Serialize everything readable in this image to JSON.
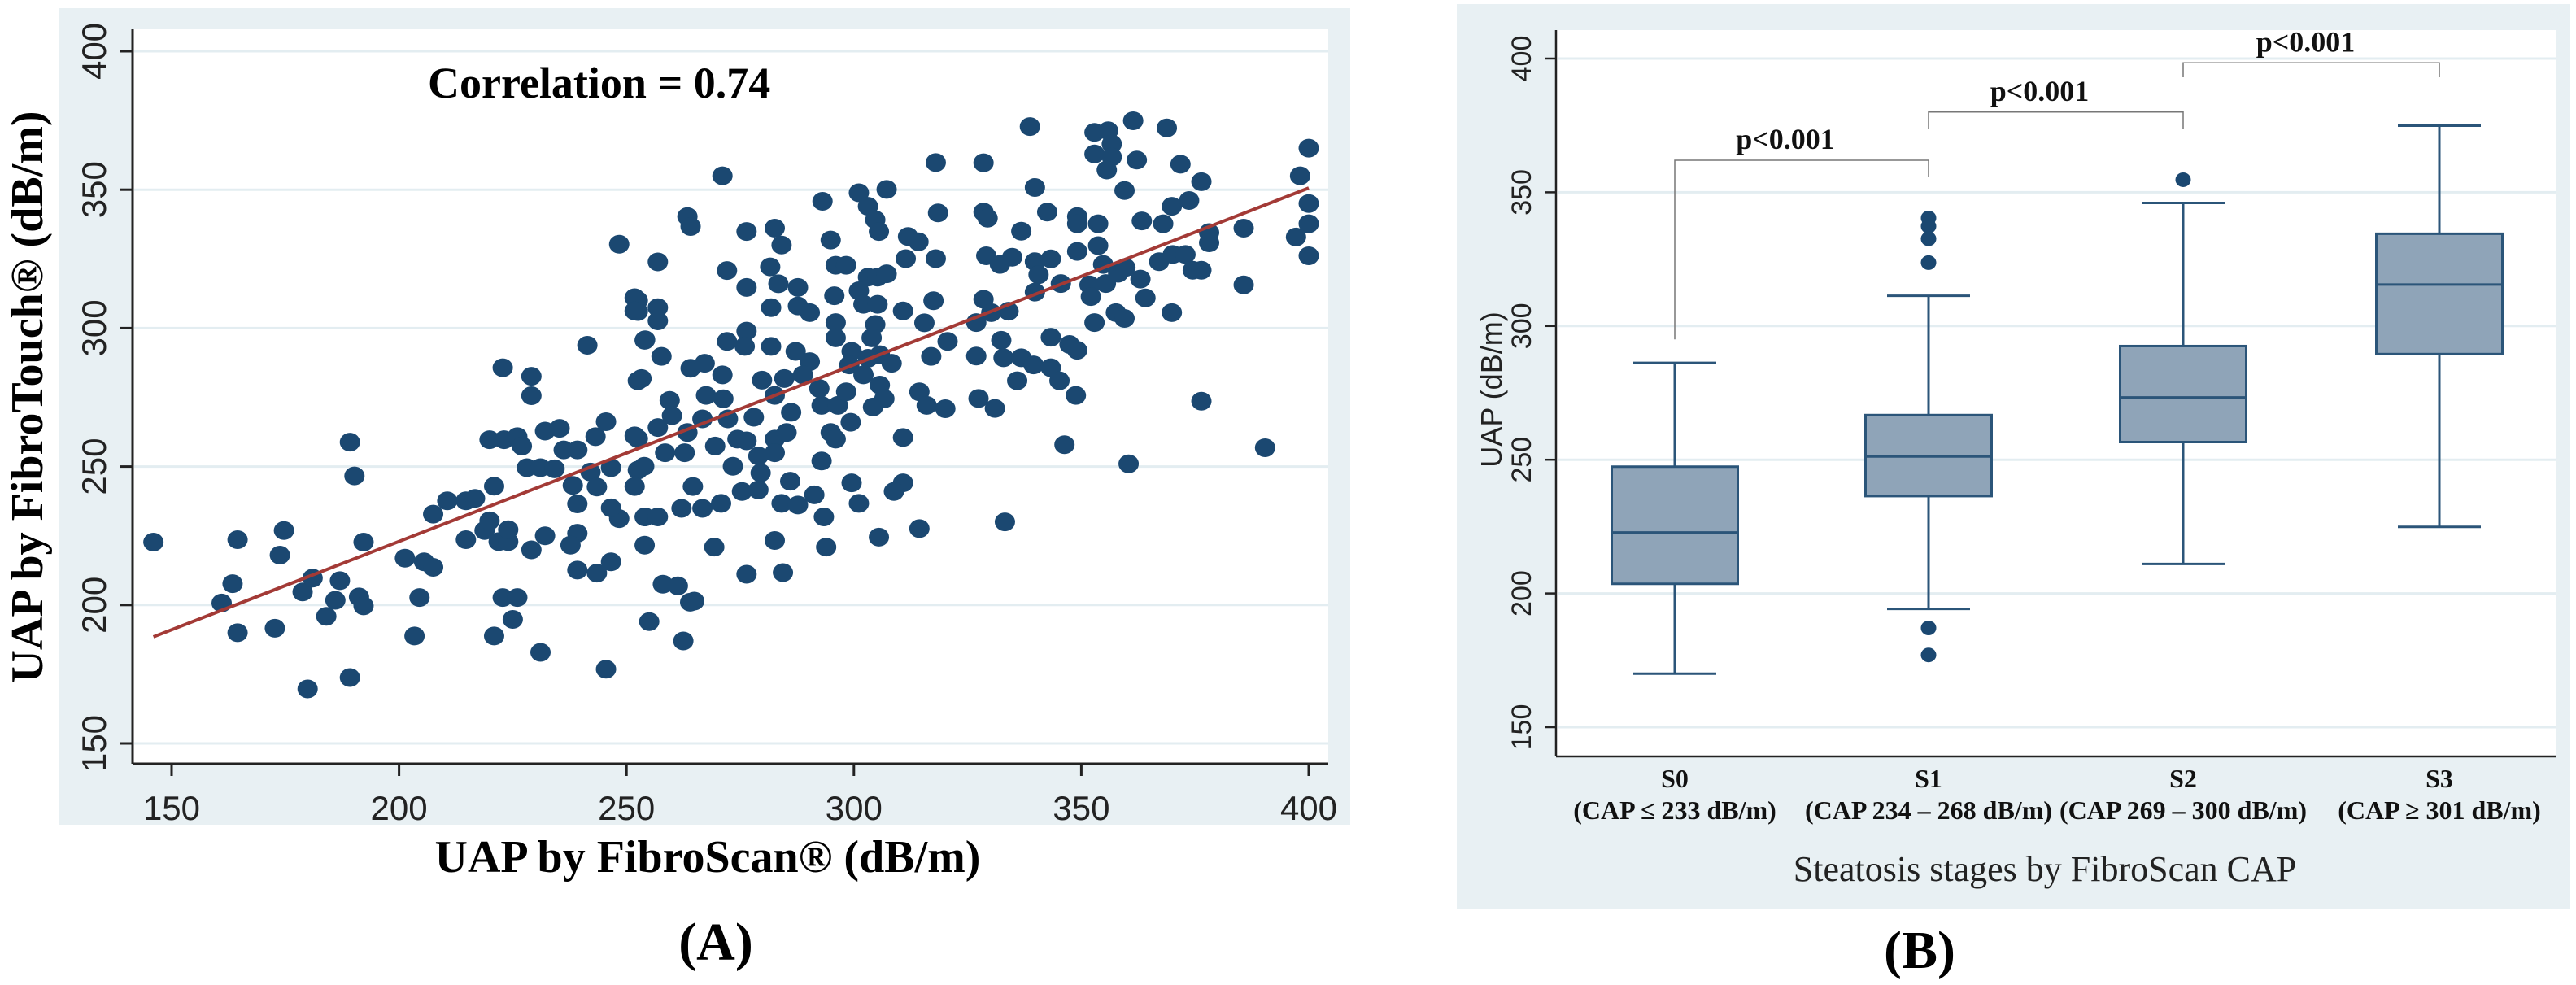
{
  "colors": {
    "panel_bg": "#e8f0f3",
    "grid": "#e3edf1",
    "dot": "#1b4871",
    "fit_line": "#a33a36",
    "box_fill": "#8fa4b8",
    "box_stroke": "#2b5579",
    "axis": "#222222"
  },
  "chart_data": [
    {
      "type": "scatter",
      "panel_label": "(A)",
      "xlabel": "UAP by FibroScan® (dB/m)",
      "ylabel": "UAP by FibroTouch® (dB/m)",
      "annotation": "Correlation = 0.74",
      "xlim": [
        150,
        400
      ],
      "ylim": [
        150,
        400
      ],
      "xticks": [
        "150",
        "200",
        "250",
        "300",
        "350",
        "400"
      ],
      "yticks": [
        "150",
        "200",
        "250",
        "300",
        "350",
        "400"
      ],
      "grid": "horizontal",
      "fit_line": {
        "x": [
          146,
          400
        ],
        "y": [
          188.5,
          350.6
        ]
      },
      "points": {
        "x": [
          146,
          164.5,
          164.5,
          161,
          163.4,
          174.7,
          173.8,
          172.7,
          178.8,
          181,
          179.9,
          184,
          186,
          187,
          189.2,
          190.2,
          189.2,
          192.2,
          191.2,
          192.2,
          201.3,
          203.4,
          204.5,
          205.5,
          207.5,
          207.5,
          210.6,
          214.7,
          216.7,
          214.7,
          218.8,
          219.9,
          220.9,
          220.9,
          219.9,
          223.1,
          222.8,
          221.9,
          224,
          224,
          222.8,
          226,
          225,
          226,
          227,
          229.1,
          229.1,
          228.1,
          231.1,
          229.1,
          231.1,
          232.1,
          232.1,
          235.3,
          234.2,
          236.2,
          239.2,
          238.2,
          239.2,
          239.2,
          237.7,
          239.2,
          243.5,
          245.5,
          246.6,
          241.4,
          245.5,
          243.2,
          242.1,
          243.5,
          246.6,
          248.4,
          246.6,
          252.5,
          252.5,
          254,
          252.5,
          252.5,
          252.5,
          254,
          254,
          248.4,
          271.1,
          263.4,
          264.1,
          256.9,
          251.8,
          251.8,
          256.9,
          256.9,
          254.1,
          257.7,
          253.3,
          251.8,
          253.9,
          251.8,
          254.1,
          256.9,
          256.9,
          258.5,
          259.5,
          260,
          262.8,
          263.4,
          264.1,
          264.6,
          262.1,
          266.7,
          266.7,
          267.5,
          267.2,
          269.5,
          269.3,
          261.3,
          264.9,
          270.8,
          272.1,
          272.1,
          271.1,
          271.3,
          272.3,
          273.4,
          274.4,
          276.4,
          276.4,
          276.4,
          276,
          275.4,
          276.4,
          278,
          276.4,
          279,
          279.5,
          279,
          279.8,
          281.6,
          282.6,
          284.1,
          281.8,
          281.8,
          283.4,
          282.6,
          284.7,
          287.2,
          290.3,
          288.8,
          282.6,
          285.2,
          282.6,
          286.2,
          282.6,
          284.4,
          286,
          284.1,
          287.7,
          287.7,
          287.7,
          290.3,
          291.3,
          292.9,
          292.4,
          292.9,
          293.4,
          293.9,
          293.1,
          294.9,
          296,
          298.3,
          295.7,
          296,
          296,
          294.9,
          296,
          296.5,
          298.3,
          299.3,
          299.5,
          299,
          299.5,
          301.1,
          301.1,
          303.1,
          304.7,
          305.5,
          307.2,
          303.1,
          305.2,
          307.2,
          301.1,
          302.1,
          305.2,
          304.7,
          303.9,
          303.1,
          305.7,
          308.3,
          302.1,
          305.7,
          306.7,
          304.2,
          310.8,
          311.9,
          311.4,
          314.2,
          315.5,
          317.5,
          318,
          318.5,
          318,
          317,
          314.4,
          316,
          310.8,
          310.8,
          308.8,
          305.5,
          314.4,
          320.1,
          320.6,
          262.5,
          255,
          258,
          264,
          338.7,
          328.5,
          339.8,
          328.5,
          329.4,
          342.5,
          336.8,
          329.1,
          332.1,
          334.8,
          339.8,
          340.6,
          339.8,
          343.3,
          345.5,
          328.5,
          330.2,
          334,
          326.9,
          332.4,
          332.9,
          336.8,
          339.5,
          343.3,
          345.2,
          348.8,
          326.9,
          327.4,
          331,
          335.9,
          343.3,
          347.4,
          349.1,
          346.3,
          333.2,
          349.1,
          349.1,
          349.1,
          353.7,
          353.7,
          354.8,
          351.8,
          352.1,
          355.4,
          358.1,
          359.7,
          352.9,
          357.6,
          359.5,
          352.9,
          355.9,
          356.7,
          356.7,
          352.9,
          355.6,
          361.4,
          362.2,
          359.5,
          363.3,
          363,
          364.1,
          368.8,
          371.8,
          376.4,
          369.9,
          368,
          373.7,
          367.1,
          370.1,
          372.9,
          374.5,
          376.4,
          369.9,
          378.1,
          378.1,
          376.4,
          360.4,
          385.7,
          385.7,
          390.4,
          398.1,
          397.2,
          400,
          400,
          400,
          400
        ],
        "y": [
          222.7,
          223.6,
          190,
          200.7,
          207.7,
          226.9,
          218,
          191.6,
          204.7,
          209.7,
          169.7,
          195.9,
          201.7,
          208.8,
          258.8,
          246.6,
          173.8,
          222.7,
          202.9,
          199.7,
          216.9,
          188.8,
          202.7,
          215.6,
          213.6,
          232.8,
          237.6,
          237.6,
          238.5,
          223.6,
          226.9,
          230.4,
          242.9,
          188.8,
          259.7,
          259.7,
          285.7,
          222.9,
          222.9,
          227.2,
          202.7,
          202.7,
          194.8,
          260.8,
          257.4,
          282.6,
          275.6,
          249.6,
          249.6,
          219.9,
          182.9,
          225,
          262.8,
          263.8,
          249.2,
          256,
          256,
          243.2,
          236.5,
          225.9,
          221.6,
          212.6,
          211.5,
          176.8,
          215.6,
          293.8,
          266.2,
          260.8,
          248,
          242.6,
          249.6,
          231.2,
          235.1,
          310,
          306,
          295.6,
          281,
          260.1,
          248.7,
          231.8,
          221.6,
          330.3,
          355,
          340.3,
          336.7,
          323.9,
          311,
          306.2,
          307.4,
          302.6,
          295.8,
          289.8,
          281.8,
          261.1,
          250.1,
          242.8,
          231.8,
          231.8,
          264.1,
          255,
          273.9,
          268.4,
          255,
          262.3,
          285.5,
          242.8,
          234.9,
          234.9,
          267.2,
          275.7,
          287.3,
          257.4,
          220.9,
          206.9,
          201.4,
          236.7,
          320.8,
          295.2,
          283.1,
          274.5,
          267.2,
          250.1,
          259.9,
          334.9,
          314.7,
          298.9,
          293.4,
          241,
          211.1,
          267.8,
          259.3,
          253.8,
          247.7,
          241.6,
          281.2,
          322.1,
          336.1,
          330,
          307.4,
          293.4,
          316,
          275.7,
          281.8,
          291.6,
          287.9,
          283.1,
          259.9,
          262.3,
          255,
          269.6,
          223.3,
          211.7,
          244.7,
          236.7,
          236.1,
          314.7,
          308,
          305.6,
          239.8,
          252,
          278.2,
          272.1,
          231.8,
          220.9,
          345.8,
          331.8,
          322.7,
          322.7,
          311.7,
          302,
          296.5,
          262.3,
          259.9,
          272.1,
          277,
          266,
          291.6,
          286.7,
          244.1,
          236.7,
          348.9,
          344,
          339.1,
          334.9,
          350.1,
          318.4,
          318.4,
          319.6,
          313.5,
          308.6,
          308.6,
          301.3,
          296.5,
          289.1,
          290.4,
          287.3,
          283.1,
          279.4,
          274.5,
          271.5,
          306.2,
          333.1,
          325.1,
          331.2,
          301.9,
          309.9,
          359.8,
          341.6,
          325.1,
          289.8,
          277,
          272.1,
          260.5,
          244.1,
          241,
          224.5,
          227.6,
          270.9,
          295.2,
          187,
          194,
          207.5,
          201,
          372.8,
          359.7,
          350.8,
          341.9,
          339.7,
          341.9,
          335,
          326.1,
          323,
          325.6,
          324,
          319.3,
          313,
          325,
          316.1,
          310.4,
          305.6,
          306.1,
          302,
          295.6,
          289.3,
          289.3,
          286.7,
          285.7,
          281,
          275.7,
          289.9,
          274.6,
          271,
          281,
          296.7,
          294.1,
          292,
          257.9,
          230,
          340.3,
          337.7,
          327.7,
          337.7,
          329.8,
          323,
          315.6,
          311.4,
          316.1,
          319.8,
          321.9,
          302,
          305.6,
          303.5,
          370.7,
          371.3,
          366.5,
          361.8,
          362.9,
          357.1,
          374.9,
          360.7,
          349.7,
          338.7,
          317.7,
          310.9,
          372.3,
          359.2,
          352.9,
          344,
          337.7,
          346.1,
          324,
          326.6,
          326.6,
          320.9,
          320.9,
          305.6,
          334.5,
          330.8,
          273.6,
          251,
          336.1,
          315.6,
          256.8,
          355,
          332.9,
          365,
          345,
          337.7,
          326.1
        ]
      }
    },
    {
      "type": "box",
      "panel_label": "(B)",
      "xlabel": "Steatosis stages by FibroScan CAP",
      "ylabel": "UAP (dB/m)",
      "ylim": [
        150,
        400
      ],
      "yticks": [
        "150",
        "200",
        "250",
        "300",
        "350",
        "400"
      ],
      "grid": "horizontal",
      "categories": [
        {
          "name": "S0",
          "range": "(CAP ≤ 233 dB/m)"
        },
        {
          "name": "S1",
          "range": "(CAP 234 – 268 dB/m)"
        },
        {
          "name": "S2",
          "range": "(CAP 269 – 300 dB/m)"
        },
        {
          "name": "S3",
          "range": "(CAP ≥ 301 dB/m)"
        }
      ],
      "boxes": [
        {
          "whisker_low": 170,
          "q1": 203.6,
          "median": 222.8,
          "q3": 247.4,
          "whisker_high": 286.2,
          "outliers": []
        },
        {
          "whisker_low": 194.2,
          "q1": 236.4,
          "median": 251.2,
          "q3": 266.7,
          "whisker_high": 311.3,
          "outliers": [
            340.4,
            337.3,
            332.6,
            323.7,
            187.1,
            177
          ]
        },
        {
          "whisker_low": 211,
          "q1": 256.6,
          "median": 273.3,
          "q3": 292.5,
          "whisker_high": 346,
          "outliers": [
            354.7
          ]
        },
        {
          "whisker_low": 224.9,
          "q1": 289.5,
          "median": 315.5,
          "q3": 334.5,
          "whisker_high": 374.9,
          "outliers": []
        }
      ],
      "comparisons": [
        {
          "pair": [
            "S0",
            "S1"
          ],
          "label": "p<0.001"
        },
        {
          "pair": [
            "S1",
            "S2"
          ],
          "label": "p<0.001"
        },
        {
          "pair": [
            "S2",
            "S3"
          ],
          "label": "p<0.001"
        }
      ]
    }
  ]
}
